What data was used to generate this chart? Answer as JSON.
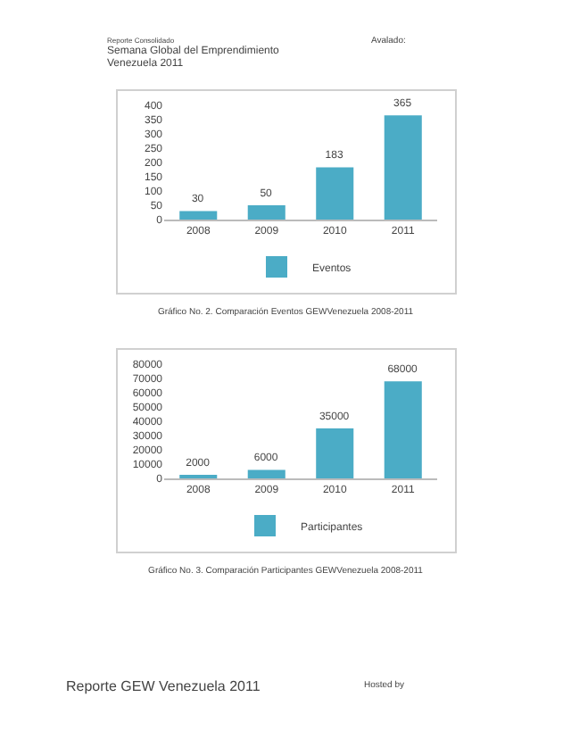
{
  "chart_data": [
    {
      "type": "bar",
      "categories": [
        "2008",
        "2009",
        "2010",
        "2011"
      ],
      "series": [
        {
          "name": "Eventos",
          "color": "#4bacc6",
          "values": [
            30,
            50,
            183,
            365
          ]
        }
      ],
      "ylim": [
        0,
        400
      ],
      "yticks": [
        0,
        50,
        100,
        150,
        200,
        250,
        300,
        350,
        400
      ],
      "grid": false,
      "legend": "bottom",
      "data_labels": true,
      "annotations": [
        "Gráfico No. 2. Comparación Eventos GEWVenezuela 2008-2011",
        "Reporte Consolidado",
        "Semana Global del Emprendimiento",
        "Venezuela 2011",
        "Avalado:"
      ]
    },
    {
      "type": "bar",
      "categories": [
        "2008",
        "2009",
        "2010",
        "2011"
      ],
      "series": [
        {
          "name": "Participantes",
          "color": "#4bacc6",
          "values": [
            2000,
            6000,
            35000,
            68000
          ]
        }
      ],
      "ylim": [
        0,
        80000
      ],
      "yticks": [
        0,
        10000,
        20000,
        30000,
        40000,
        50000,
        60000,
        70000,
        80000
      ],
      "grid": false,
      "legend": "bottom",
      "data_labels": true,
      "annotations": [
        "Gráfico No. 3. Comparación Participantes GEWVenezuela 2008-2011",
        "Reporte GEW Venezuela 2011",
        "Hosted by"
      ]
    }
  ]
}
